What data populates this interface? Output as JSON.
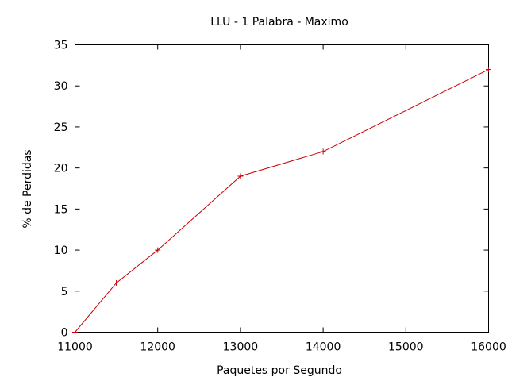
{
  "chart_data": {
    "type": "line",
    "title": "LLU - 1 Palabra - Maximo",
    "xlabel": "Paquetes por Segundo",
    "ylabel": "% de Perdidas",
    "xlim": [
      11000,
      16000
    ],
    "ylim": [
      0,
      35
    ],
    "xticks": [
      11000,
      12000,
      13000,
      14000,
      15000,
      16000
    ],
    "yticks": [
      0,
      5,
      10,
      15,
      20,
      25,
      30,
      35
    ],
    "grid": false,
    "legend": "none",
    "series": [
      {
        "color": "#cc0000",
        "marker": "plus",
        "points": [
          {
            "x": 11000,
            "y": 0
          },
          {
            "x": 11500,
            "y": 6
          },
          {
            "x": 12000,
            "y": 10
          },
          {
            "x": 13000,
            "y": 19
          },
          {
            "x": 14000,
            "y": 22
          },
          {
            "x": 16000,
            "y": 32
          }
        ]
      }
    ]
  }
}
